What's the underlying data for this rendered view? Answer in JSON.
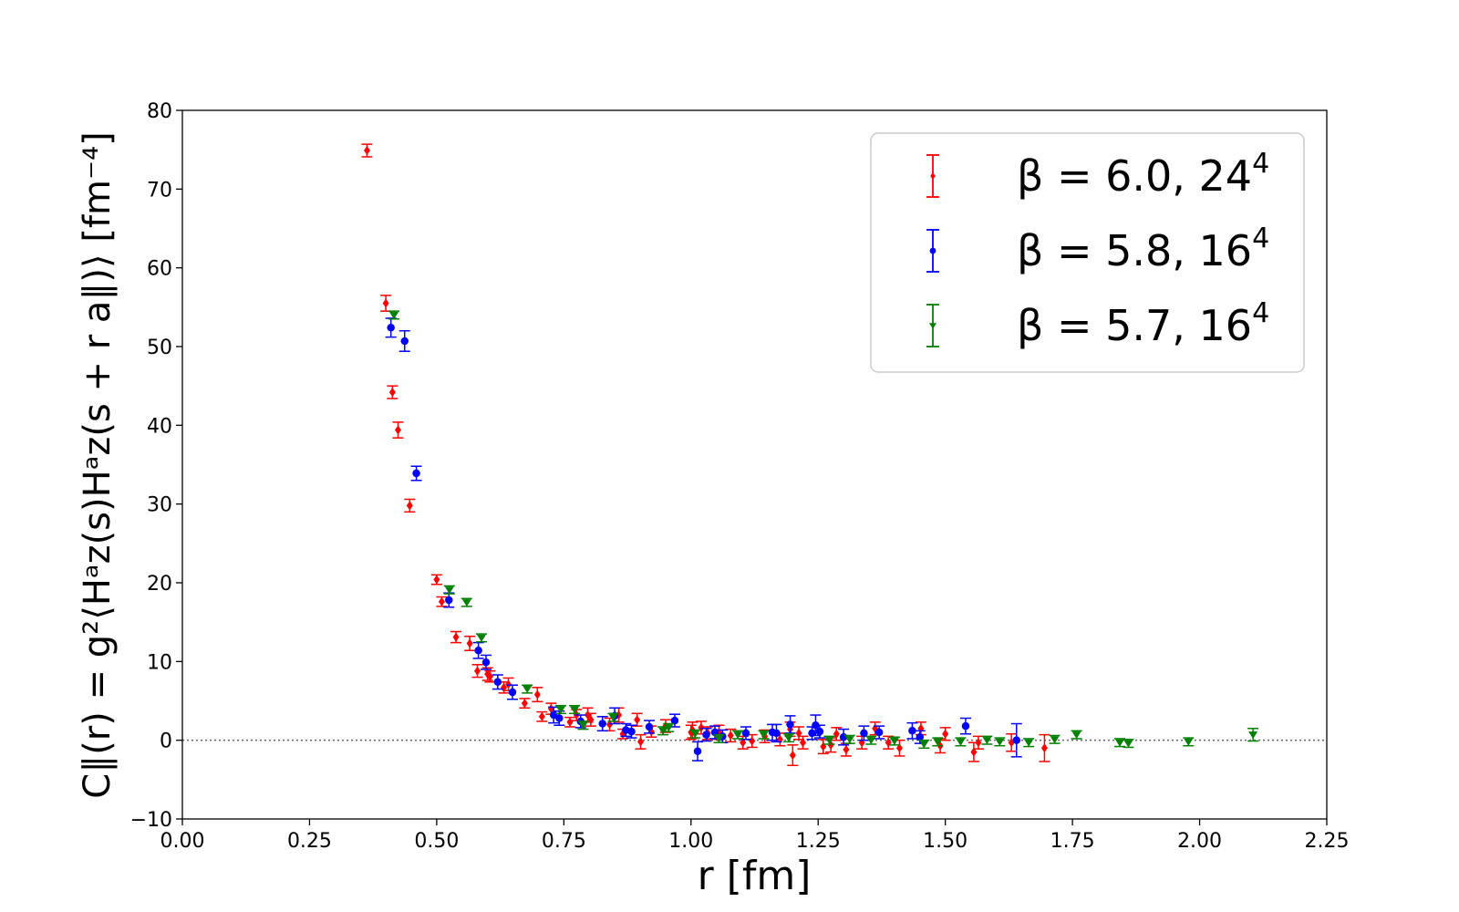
{
  "chart_data": {
    "type": "scatter",
    "xlabel": "r [fm]",
    "ylabel": "C∥(r) = g²⟨Hᵃz(s)Hᵃz(s + r a∥)⟩ [fm⁻⁴]",
    "xlim": [
      0.0,
      2.25
    ],
    "ylim": [
      -10,
      80
    ],
    "x_ticks": [
      "0.00",
      "0.25",
      "0.50",
      "0.75",
      "1.00",
      "1.25",
      "1.50",
      "1.75",
      "2.00",
      "2.25"
    ],
    "y_ticks": [
      "−10",
      "0",
      "10",
      "20",
      "30",
      "40",
      "50",
      "60",
      "70",
      "80"
    ],
    "grid": false,
    "zero_line": true,
    "legend_position": "top-right",
    "series": [
      {
        "name": "β = 6.0, 24",
        "name_sup": "4",
        "color": "#ff0000",
        "marker": "diamond",
        "points": [
          [
            0.363,
            74.9,
            0.8
          ],
          [
            0.4,
            55.5,
            1.0
          ],
          [
            0.413,
            44.2,
            0.8
          ],
          [
            0.424,
            39.4,
            1.0
          ],
          [
            0.447,
            29.8,
            0.8
          ],
          [
            0.5,
            20.4,
            0.6
          ],
          [
            0.51,
            17.6,
            0.6
          ],
          [
            0.538,
            13.1,
            0.7
          ],
          [
            0.565,
            12.3,
            0.9
          ],
          [
            0.58,
            8.8,
            0.8
          ],
          [
            0.6,
            8.4,
            0.8
          ],
          [
            0.605,
            8.1,
            0.7
          ],
          [
            0.632,
            6.7,
            0.7
          ],
          [
            0.641,
            7.1,
            0.8
          ],
          [
            0.673,
            4.7,
            0.6
          ],
          [
            0.698,
            5.8,
            0.9
          ],
          [
            0.707,
            3.0,
            0.6
          ],
          [
            0.725,
            4.0,
            0.7
          ],
          [
            0.762,
            2.3,
            0.6
          ],
          [
            0.775,
            3.2,
            0.7
          ],
          [
            0.797,
            3.2,
            0.9
          ],
          [
            0.803,
            2.6,
            0.8
          ],
          [
            0.84,
            2.0,
            0.8
          ],
          [
            0.858,
            3.2,
            0.9
          ],
          [
            0.866,
            0.8,
            0.6
          ],
          [
            0.894,
            2.6,
            0.8
          ],
          [
            0.901,
            -0.2,
            0.9
          ],
          [
            0.922,
            1.1,
            0.7
          ],
          [
            0.95,
            1.8,
            0.8
          ],
          [
            1.0,
            1.0,
            0.9
          ],
          [
            1.003,
            1.3,
            1.0
          ],
          [
            1.02,
            1.6,
            0.8
          ],
          [
            1.033,
            0.9,
            0.8
          ],
          [
            1.055,
            1.0,
            0.9
          ],
          [
            1.078,
            0.6,
            0.8
          ],
          [
            1.102,
            -0.3,
            0.8
          ],
          [
            1.12,
            -0.1,
            0.8
          ],
          [
            1.145,
            0.5,
            0.8
          ],
          [
            1.175,
            0.1,
            0.8
          ],
          [
            1.195,
            1.4,
            0.9
          ],
          [
            1.2,
            -1.9,
            1.3
          ],
          [
            1.212,
            0.9,
            0.8
          ],
          [
            1.22,
            -0.3,
            0.8
          ],
          [
            1.26,
            -0.8,
            0.9
          ],
          [
            1.275,
            -0.6,
            0.9
          ],
          [
            1.286,
            0.8,
            0.8
          ],
          [
            1.305,
            -1.2,
            0.8
          ],
          [
            1.336,
            -0.3,
            0.8
          ],
          [
            1.362,
            1.5,
            0.8
          ],
          [
            1.388,
            -0.3,
            0.8
          ],
          [
            1.41,
            -1.0,
            1.0
          ],
          [
            1.452,
            1.5,
            0.8
          ],
          [
            1.49,
            -0.7,
            0.9
          ],
          [
            1.5,
            0.8,
            0.8
          ],
          [
            1.556,
            -1.5,
            1.2
          ],
          [
            1.565,
            -0.3,
            0.8
          ],
          [
            1.63,
            -0.3,
            1.1
          ],
          [
            1.695,
            -1.0,
            1.7
          ]
        ]
      },
      {
        "name": "β = 5.8, 16",
        "name_sup": "4",
        "color": "#0000ff",
        "marker": "circle",
        "points": [
          [
            0.41,
            52.4,
            1.2
          ],
          [
            0.437,
            50.7,
            1.3
          ],
          [
            0.46,
            33.9,
            0.9
          ],
          [
            0.524,
            17.8,
            0.9
          ],
          [
            0.582,
            11.4,
            1.0
          ],
          [
            0.597,
            9.9,
            0.9
          ],
          [
            0.62,
            7.4,
            0.9
          ],
          [
            0.649,
            6.1,
            0.9
          ],
          [
            0.73,
            3.2,
            1.0
          ],
          [
            0.741,
            2.8,
            0.9
          ],
          [
            0.783,
            2.4,
            0.8
          ],
          [
            0.826,
            2.1,
            0.9
          ],
          [
            0.85,
            3.1,
            1.0
          ],
          [
            0.872,
            1.3,
            0.8
          ],
          [
            0.883,
            1.1,
            0.8
          ],
          [
            0.918,
            1.7,
            0.8
          ],
          [
            0.968,
            2.5,
            0.8
          ],
          [
            1.013,
            -1.4,
            1.2
          ],
          [
            1.03,
            0.7,
            0.8
          ],
          [
            1.047,
            1.0,
            0.8
          ],
          [
            1.062,
            0.5,
            0.8
          ],
          [
            1.108,
            0.9,
            0.8
          ],
          [
            1.16,
            1.0,
            1.0
          ],
          [
            1.168,
            0.9,
            1.1
          ],
          [
            1.195,
            2.0,
            1.1
          ],
          [
            1.238,
            0.9,
            0.8
          ],
          [
            1.245,
            1.9,
            1.3
          ],
          [
            1.253,
            1.1,
            0.8
          ],
          [
            1.3,
            0.4,
            1.0
          ],
          [
            1.34,
            0.9,
            0.9
          ],
          [
            1.37,
            1.0,
            0.8
          ],
          [
            1.435,
            1.2,
            1.0
          ],
          [
            1.45,
            0.4,
            0.8
          ],
          [
            1.54,
            1.8,
            1.0
          ],
          [
            1.64,
            0.0,
            2.1
          ]
        ]
      },
      {
        "name": "β = 5.7, 16",
        "name_sup": "4",
        "color": "#008000",
        "marker": "triangle-down",
        "points": [
          [
            0.416,
            54.0,
            0.5
          ],
          [
            0.525,
            19.1,
            0.5
          ],
          [
            0.559,
            17.5,
            0.5
          ],
          [
            0.588,
            13.0,
            0.5
          ],
          [
            0.678,
            6.5,
            0.5
          ],
          [
            0.744,
            3.9,
            0.5
          ],
          [
            0.771,
            3.9,
            0.5
          ],
          [
            0.788,
            1.9,
            0.5
          ],
          [
            0.847,
            2.9,
            0.5
          ],
          [
            0.945,
            1.2,
            0.5
          ],
          [
            0.956,
            1.6,
            0.5
          ],
          [
            1.008,
            0.8,
            0.5
          ],
          [
            1.055,
            0.2,
            0.5
          ],
          [
            1.092,
            0.7,
            0.5
          ],
          [
            1.143,
            0.7,
            0.5
          ],
          [
            1.192,
            0.3,
            0.5
          ],
          [
            1.272,
            0.0,
            0.5
          ],
          [
            1.312,
            0.1,
            0.5
          ],
          [
            1.354,
            0.0,
            0.5
          ],
          [
            1.4,
            -0.1,
            0.5
          ],
          [
            1.458,
            -0.5,
            0.5
          ],
          [
            1.485,
            -0.2,
            0.5
          ],
          [
            1.53,
            -0.2,
            0.5
          ],
          [
            1.582,
            0.0,
            0.5
          ],
          [
            1.607,
            -0.2,
            0.5
          ],
          [
            1.664,
            -0.3,
            0.5
          ],
          [
            1.715,
            0.1,
            0.5
          ],
          [
            1.758,
            0.7,
            0.5
          ],
          [
            1.843,
            -0.3,
            0.5
          ],
          [
            1.86,
            -0.4,
            0.5
          ],
          [
            1.978,
            -0.2,
            0.5
          ],
          [
            2.105,
            0.7,
            0.8
          ]
        ]
      }
    ]
  }
}
